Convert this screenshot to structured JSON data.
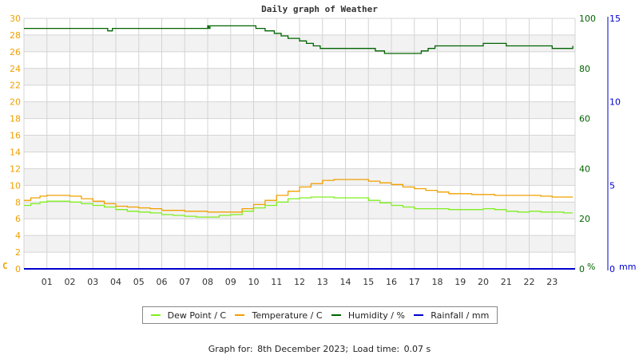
{
  "title": "Daily graph of Weather",
  "footer": {
    "graph_for_label": "Graph for:",
    "date": "8th December 2023;",
    "load_time_label": "Load time:",
    "load_time": "0.07 s"
  },
  "colors": {
    "dew_point": "#7fef1f",
    "temperature": "#f0a000",
    "humidity": "#006400",
    "rainfall": "#0000cc",
    "left_axis": "#f0a000",
    "humidity_axis": "#006400",
    "rain_axis": "#0000cc",
    "grid": "#d4d4d4",
    "band": "#f2f2f2"
  },
  "axes": {
    "left_unit": "C",
    "humidity_unit": "%",
    "rain_unit": "mm"
  },
  "legend": [
    {
      "key": "dew_point",
      "label": "Dew Point / C"
    },
    {
      "key": "temperature",
      "label": "Temperature / C"
    },
    {
      "key": "humidity",
      "label": "Humidity / %"
    },
    {
      "key": "rainfall",
      "label": "Rainfall / mm"
    }
  ],
  "chart_data": {
    "type": "line",
    "title": "Daily graph of Weather",
    "xlabel": "",
    "x_ticks": [
      "01",
      "02",
      "03",
      "04",
      "05",
      "06",
      "07",
      "08",
      "09",
      "10",
      "11",
      "12",
      "13",
      "14",
      "15",
      "16",
      "17",
      "18",
      "19",
      "20",
      "21",
      "22",
      "23"
    ],
    "xlim": [
      0,
      24
    ],
    "y_left": {
      "label": "C",
      "ylim": [
        0,
        30
      ],
      "ticks": [
        0,
        2,
        4,
        6,
        8,
        10,
        12,
        14,
        16,
        18,
        20,
        22,
        24,
        26,
        28,
        30
      ]
    },
    "y_right_humidity": {
      "label": "%",
      "ylim": [
        0,
        100
      ],
      "ticks": [
        0,
        20,
        40,
        60,
        80,
        100
      ]
    },
    "y_right_rain": {
      "label": "mm",
      "ylim": [
        0,
        15
      ],
      "ticks": [
        0,
        5,
        10,
        15
      ]
    },
    "grid": true,
    "legend_position": "bottom",
    "series": [
      {
        "name": "Temperature / C",
        "axis": "left",
        "x": [
          0,
          0.3,
          0.7,
          1.0,
          1.5,
          2.0,
          2.5,
          3.0,
          3.5,
          4.0,
          4.5,
          5.0,
          5.5,
          6.0,
          6.5,
          7.0,
          7.5,
          8.0,
          8.5,
          9.0,
          9.5,
          10.0,
          10.5,
          11.0,
          11.5,
          12.0,
          12.5,
          13.0,
          13.5,
          14.0,
          14.5,
          15.0,
          15.5,
          16.0,
          16.5,
          17.0,
          17.5,
          18.0,
          18.5,
          19.0,
          19.5,
          20.0,
          20.5,
          21.0,
          21.5,
          22.0,
          22.5,
          23.0,
          23.5,
          23.9
        ],
        "values": [
          8.2,
          8.5,
          8.7,
          8.8,
          8.8,
          8.7,
          8.4,
          8.1,
          7.8,
          7.5,
          7.4,
          7.3,
          7.2,
          7.0,
          7.0,
          6.9,
          6.9,
          6.8,
          6.8,
          6.8,
          7.2,
          7.7,
          8.2,
          8.8,
          9.3,
          9.8,
          10.2,
          10.6,
          10.7,
          10.7,
          10.7,
          10.5,
          10.3,
          10.1,
          9.8,
          9.6,
          9.4,
          9.2,
          9.0,
          9.0,
          8.9,
          8.9,
          8.8,
          8.8,
          8.8,
          8.8,
          8.7,
          8.6,
          8.6,
          8.6
        ]
      },
      {
        "name": "Dew Point / C",
        "axis": "left",
        "x": [
          0,
          0.3,
          0.7,
          1.0,
          1.5,
          2.0,
          2.5,
          3.0,
          3.5,
          4.0,
          4.5,
          5.0,
          5.5,
          6.0,
          6.5,
          7.0,
          7.5,
          8.0,
          8.5,
          9.0,
          9.5,
          10.0,
          10.5,
          11.0,
          11.5,
          12.0,
          12.5,
          13.0,
          13.5,
          14.0,
          14.5,
          15.0,
          15.5,
          16.0,
          16.5,
          17.0,
          17.5,
          18.0,
          18.5,
          19.0,
          19.5,
          20.0,
          20.5,
          21.0,
          21.5,
          22.0,
          22.5,
          23.0,
          23.5,
          23.9
        ],
        "values": [
          7.6,
          7.8,
          8.0,
          8.1,
          8.1,
          8.0,
          7.8,
          7.6,
          7.4,
          7.1,
          6.9,
          6.8,
          6.7,
          6.5,
          6.4,
          6.3,
          6.2,
          6.2,
          6.4,
          6.5,
          6.9,
          7.3,
          7.6,
          8.0,
          8.4,
          8.5,
          8.6,
          8.6,
          8.5,
          8.5,
          8.5,
          8.2,
          7.9,
          7.6,
          7.4,
          7.2,
          7.2,
          7.2,
          7.1,
          7.1,
          7.1,
          7.2,
          7.1,
          6.9,
          6.8,
          6.9,
          6.8,
          6.8,
          6.7,
          6.7
        ]
      },
      {
        "name": "Humidity / %",
        "axis": "right_humidity",
        "x": [
          0,
          3.6,
          3.65,
          3.8,
          3.85,
          7.9,
          8.0,
          8.05,
          8.1,
          10.0,
          10.1,
          10.5,
          10.9,
          11.2,
          11.5,
          12.0,
          12.3,
          12.6,
          12.9,
          13.0,
          14.5,
          15.0,
          15.3,
          15.7,
          16.5,
          17.0,
          17.3,
          17.6,
          17.9,
          18.5,
          19.0,
          20.0,
          20.5,
          21.0,
          21.5,
          22.0,
          22.5,
          23.0,
          23.5,
          23.9
        ],
        "values": [
          96,
          96,
          95,
          95,
          96,
          96,
          97,
          96,
          97,
          97,
          96,
          95,
          94,
          93,
          92,
          91,
          90,
          89,
          88,
          88,
          88,
          88,
          87,
          86,
          86,
          86,
          87,
          88,
          89,
          89,
          89,
          90,
          90,
          89,
          89,
          89,
          89,
          88,
          88,
          89
        ]
      },
      {
        "name": "Rainfall / mm",
        "axis": "right_rain",
        "x": [
          0,
          24
        ],
        "values": [
          0,
          0
        ]
      }
    ]
  }
}
